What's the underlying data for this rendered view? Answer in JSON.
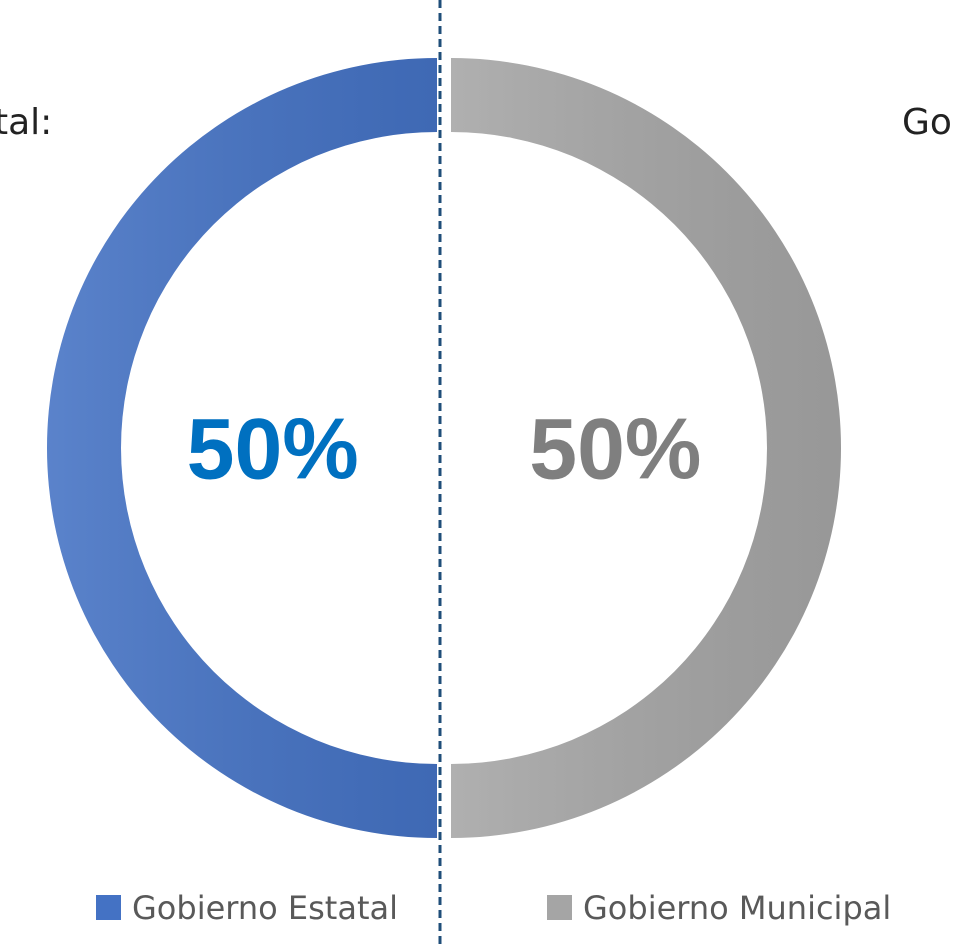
{
  "chart_data": {
    "type": "pie",
    "donut": true,
    "annotations": [
      "tal:",
      "Go"
    ],
    "categories": [
      "Gobierno Estatal",
      "Gobierno Municipal"
    ],
    "values": [
      50,
      50
    ],
    "value_labels": [
      "50%",
      "50%"
    ],
    "colors": [
      "#4472c4",
      "#a5a5a5"
    ],
    "label_colors": [
      "#0070c0",
      "#7f7f7f"
    ],
    "legend": "bottom"
  }
}
